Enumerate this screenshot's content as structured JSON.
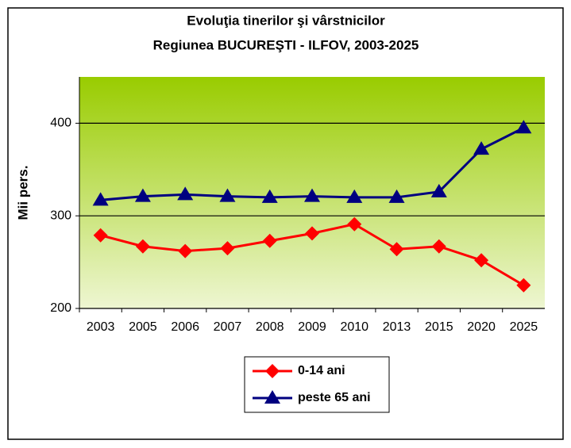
{
  "chart_data": {
    "type": "line",
    "title": "Evoluţia tinerilor şi vârstnicilor",
    "subtitle": "Regiunea BUCUREŞTI - ILFOV, 2003-2025",
    "y_label": "Mii pers.",
    "categories": [
      "2003",
      "2005",
      "2006",
      "2007",
      "2008",
      "2009",
      "2010",
      "2013",
      "2015",
      "2020",
      "2025"
    ],
    "series": [
      {
        "name": "0-14 ani",
        "color": "#ff0000",
        "marker": "diamond",
        "values": [
          279,
          267,
          262,
          265,
          273,
          281,
          291,
          264,
          267,
          252,
          225
        ]
      },
      {
        "name": "peste 65 ani",
        "color": "#000080",
        "marker": "triangle",
        "values": [
          317,
          321,
          323,
          321,
          320,
          321,
          320,
          320,
          326,
          372,
          395
        ]
      }
    ],
    "ylim": [
      200,
      450
    ],
    "yticks": [
      200,
      300,
      400
    ],
    "grid": true,
    "legend": "bottom"
  }
}
